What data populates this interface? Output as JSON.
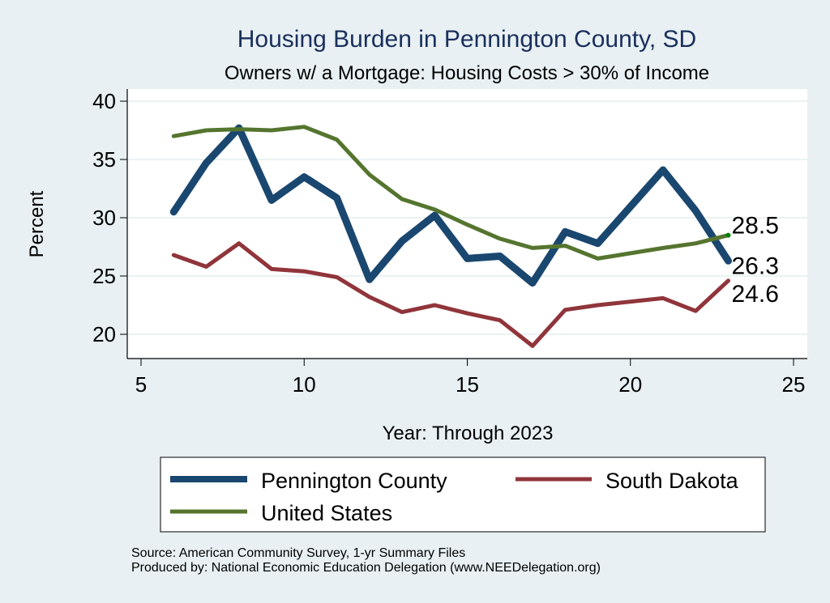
{
  "chart_data": {
    "type": "line",
    "title": "Housing Burden in Pennington County, SD",
    "subtitle": "Owners w/ a Mortgage: Housing Costs > 30% of Income",
    "xlabel": "Year: Through 2023",
    "ylabel": "Percent",
    "xlim": [
      5,
      25
    ],
    "ylim": [
      20,
      40
    ],
    "xticks": [
      "5",
      "10",
      "15",
      "20",
      "25"
    ],
    "yticks": [
      "20",
      "25",
      "30",
      "35",
      "40"
    ],
    "grid": true,
    "legend_position": "bottom",
    "x": [
      6,
      7,
      8,
      9,
      10,
      11,
      12,
      13,
      14,
      15,
      16,
      17,
      18,
      19,
      21,
      22,
      23
    ],
    "series": [
      {
        "name": "Pennington County",
        "color": "#1a476f",
        "values": [
          30.5,
          34.7,
          37.7,
          31.5,
          33.5,
          31.7,
          24.7,
          28.0,
          30.2,
          26.5,
          26.7,
          24.4,
          28.8,
          27.8,
          34.1,
          30.6,
          26.3
        ],
        "end_label": "26.3"
      },
      {
        "name": "South Dakota",
        "color": "#90353b",
        "values": [
          26.8,
          25.8,
          27.8,
          25.6,
          25.4,
          24.9,
          23.2,
          21.9,
          22.5,
          21.8,
          21.2,
          19.0,
          22.1,
          22.5,
          23.1,
          22.0,
          24.6
        ],
        "end_label": "24.6"
      },
      {
        "name": "United States",
        "color": "#55752f",
        "values": [
          37.0,
          37.5,
          37.6,
          37.5,
          37.8,
          36.7,
          33.7,
          31.6,
          30.7,
          29.4,
          28.2,
          27.4,
          27.6,
          26.5,
          27.4,
          27.8,
          28.5
        ],
        "end_label": "28.5"
      }
    ]
  },
  "notes": {
    "source": "Source: American Community Survey, 1-yr Summary Files",
    "produced": "Produced by: National Economic Education Delegation (www.NEEDelegation.org)"
  },
  "colors": {
    "background": "#e8f0f3",
    "title": "#1a2f5c",
    "grid": "#eaf2f3",
    "endpoint_dot": "#008000"
  }
}
